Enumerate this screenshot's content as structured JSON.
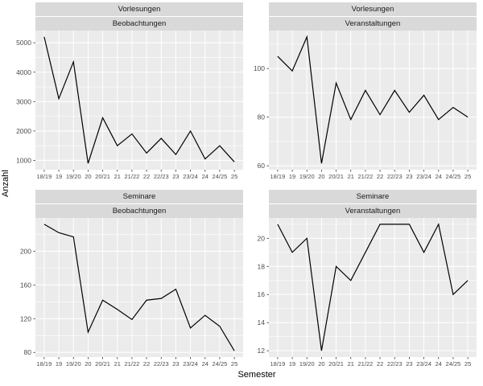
{
  "chart_data": {
    "type": "line",
    "title": "",
    "xlabel": "Semester",
    "ylabel": "Anzahl",
    "categories": [
      "18/19",
      "19",
      "19/20",
      "20",
      "20/21",
      "21",
      "21/22",
      "22",
      "22/23",
      "23",
      "23/24",
      "24",
      "24/25",
      "25"
    ],
    "legend": "none",
    "grid": "on",
    "facets": [
      {
        "row": "Vorlesungen",
        "col": "Beobachtungen",
        "values": [
          5200,
          3100,
          4350,
          900,
          2450,
          1500,
          1900,
          1250,
          1750,
          1200,
          2000,
          1050,
          1500,
          950
        ],
        "ylim": [
          685,
          5415
        ],
        "yticks": [
          1000,
          2000,
          3000,
          4000,
          5000
        ],
        "yminor": [
          1500,
          2500,
          3500,
          4500
        ]
      },
      {
        "row": "Vorlesungen",
        "col": "Veranstaltungen",
        "values": [
          105,
          99,
          113,
          61,
          94,
          79,
          91,
          81,
          91,
          82,
          89,
          79,
          84,
          80
        ],
        "ylim": [
          58.4,
          115.6
        ],
        "yticks": [
          60,
          80,
          100
        ],
        "yminor": [
          70,
          90,
          110
        ]
      },
      {
        "row": "Seminare",
        "col": "Beobachtungen",
        "values": [
          232,
          222,
          217,
          104,
          142,
          131,
          119,
          142,
          144,
          155,
          109,
          124,
          111,
          82
        ],
        "ylim": [
          74.5,
          239.5
        ],
        "yticks": [
          80,
          120,
          160,
          200
        ],
        "yminor": [
          100,
          140,
          180,
          220
        ]
      },
      {
        "row": "Seminare",
        "col": "Veranstaltungen",
        "values": [
          21,
          19,
          20,
          12,
          18,
          17,
          19,
          21,
          21,
          21,
          19,
          21,
          16,
          17
        ],
        "ylim": [
          11.55,
          21.45
        ],
        "yticks": [
          12,
          14,
          16,
          18,
          20
        ],
        "yminor": [
          13,
          15,
          17,
          19,
          21
        ]
      }
    ],
    "style": {
      "panel_bg": "#ebebeb",
      "strip_bg": "#d9d9d9",
      "grid_color": "#ffffff",
      "line_color": "#000000",
      "axis_text_color": "#4d4d4d",
      "strip_text_color": "#1a1a1a",
      "tick_color": "#333333",
      "title_color": "#000000"
    }
  }
}
